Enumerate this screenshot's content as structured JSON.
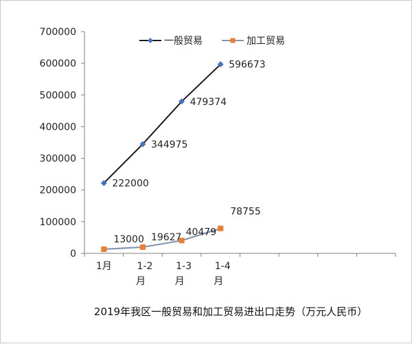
{
  "chart_data": {
    "type": "line",
    "title": "2019年我区一般贸易和加工贸易进出口走势（万元人民币）",
    "categories": [
      "1月",
      "1-2月",
      "1-3月",
      "1-4月"
    ],
    "ylim": [
      0,
      700000
    ],
    "y_ticks": [
      0,
      100000,
      200000,
      300000,
      400000,
      500000,
      600000,
      700000
    ],
    "x_slots": 8,
    "grid": false,
    "legend_position": "top",
    "series": [
      {
        "name": "一般贸易",
        "values": [
          222000,
          344975,
          479374,
          596673
        ],
        "labels": [
          "222000",
          "344975",
          "479374",
          "596673"
        ],
        "line_color": "#1a1a1a",
        "marker_color": "#4472c4",
        "marker": "diamond"
      },
      {
        "name": "加工贸易",
        "values": [
          13000,
          19627,
          40479,
          78755
        ],
        "labels": [
          "13000",
          "19627",
          "40479",
          "78755"
        ],
        "line_color": "#8497b0",
        "marker_color": "#ed7d31",
        "marker": "square"
      }
    ]
  }
}
